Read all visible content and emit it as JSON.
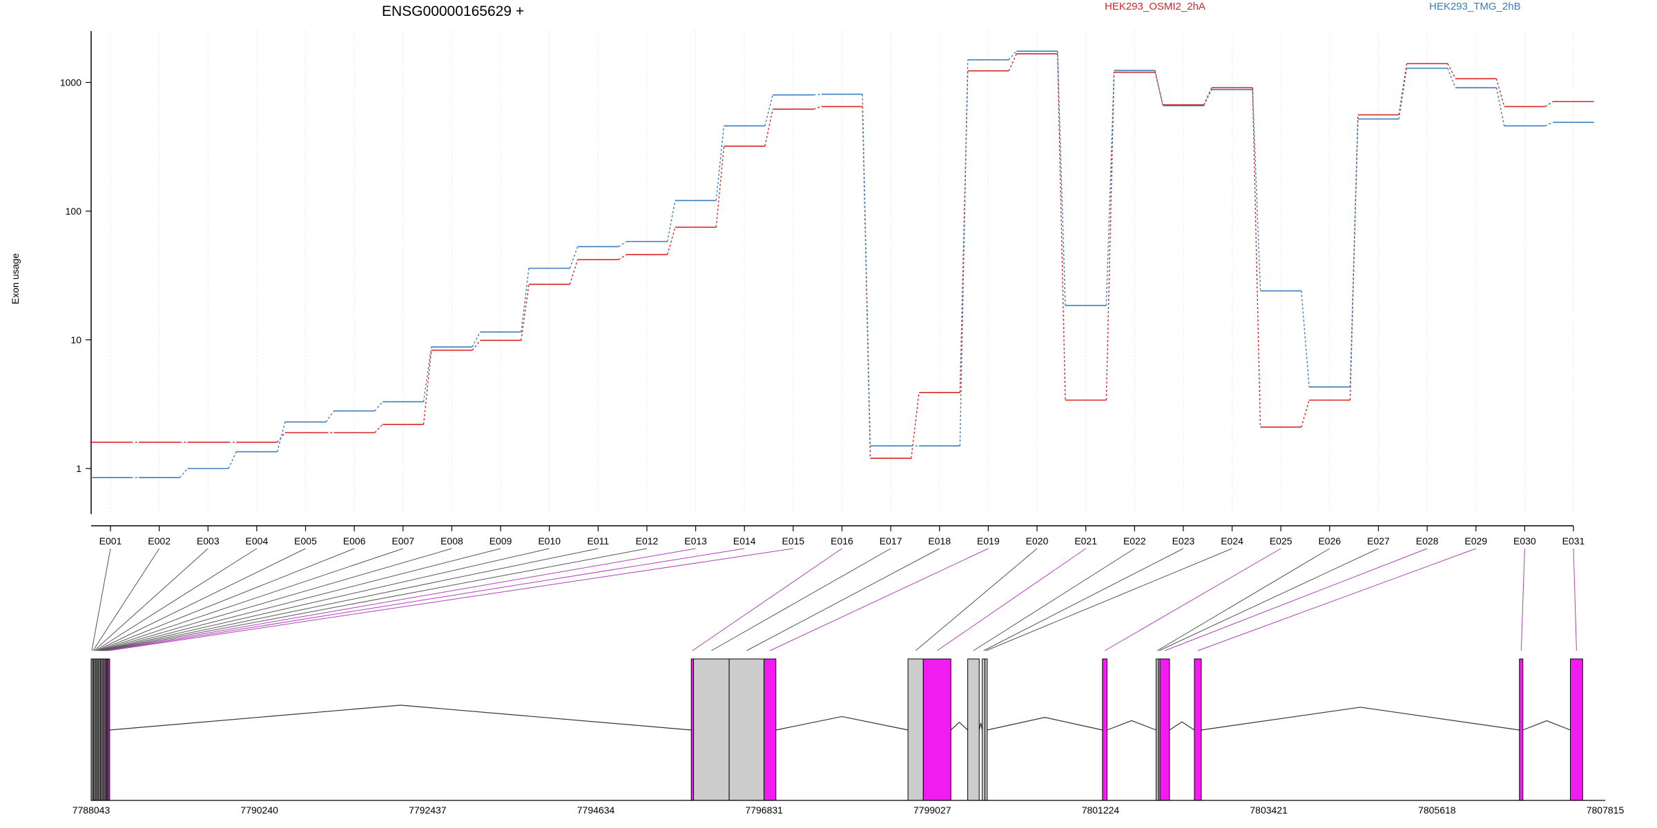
{
  "chart_data": {
    "type": "line",
    "title": "ENSG00000165629 +",
    "ylabel": "Exon usage",
    "yscale": "log",
    "ylim": [
      0.5,
      2500
    ],
    "yticks": [
      "1",
      "10",
      "100",
      "1000"
    ],
    "categories": [
      "E001",
      "E002",
      "E003",
      "E004",
      "E005",
      "E006",
      "E007",
      "E008",
      "E009",
      "E010",
      "E011",
      "E012",
      "E013",
      "E014",
      "E015",
      "E016",
      "E017",
      "E018",
      "E019",
      "E020",
      "E021",
      "E022",
      "E023",
      "E024",
      "E025",
      "E026",
      "E027",
      "E028",
      "E029",
      "E030",
      "E031"
    ],
    "series": [
      {
        "name": "HEK293_OSMI2_2hA",
        "color": "#d62728",
        "values": [
          1.6,
          1.6,
          1.6,
          1.6,
          1.9,
          1.9,
          2.2,
          8.3,
          9.9,
          27,
          42,
          46,
          75,
          320,
          620,
          650,
          1.2,
          3.9,
          1230,
          1670,
          3.4,
          1200,
          670,
          910,
          2.1,
          3.4,
          560,
          1400,
          1070,
          650,
          710
        ]
      },
      {
        "name": "HEK293_TMG_2hB",
        "color": "#3a7dbf",
        "values": [
          0.85,
          0.85,
          1.0,
          1.35,
          2.3,
          2.8,
          3.3,
          8.8,
          11.5,
          36,
          53,
          58,
          121,
          460,
          800,
          810,
          1.5,
          1.5,
          1500,
          1750,
          18.5,
          1240,
          660,
          880,
          24,
          4.3,
          520,
          1290,
          910,
          460,
          490
        ]
      }
    ],
    "gene_axis": {
      "tick_labels": [
        "7788043",
        "7790240",
        "7792437",
        "7794634",
        "7796831",
        "7799027",
        "7801224",
        "7803421",
        "7805618",
        "7807815"
      ],
      "range": [
        7788043,
        7807815
      ]
    },
    "exon_track": {
      "colors": {
        "significant": "#f01cf0",
        "normal": "#cccccc",
        "outline": "#000000"
      },
      "exons": [
        {
          "id": "E001",
          "start": 7788043,
          "end": 7788060,
          "highlight": false
        },
        {
          "id": "E002",
          "start": 7788060,
          "end": 7788075,
          "highlight": false
        },
        {
          "id": "E003",
          "start": 7788075,
          "end": 7788090,
          "highlight": false
        },
        {
          "id": "E004",
          "start": 7788090,
          "end": 7788105,
          "highlight": false
        },
        {
          "id": "E005",
          "start": 7788105,
          "end": 7788120,
          "highlight": false
        },
        {
          "id": "E006",
          "start": 7788120,
          "end": 7788135,
          "highlight": false
        },
        {
          "id": "E007",
          "start": 7788135,
          "end": 7788150,
          "highlight": false
        },
        {
          "id": "E008",
          "start": 7788150,
          "end": 7788165,
          "highlight": false
        },
        {
          "id": "E009",
          "start": 7788165,
          "end": 7788180,
          "highlight": false
        },
        {
          "id": "E010",
          "start": 7788180,
          "end": 7788195,
          "highlight": false
        },
        {
          "id": "E011",
          "start": 7788195,
          "end": 7788210,
          "highlight": false
        },
        {
          "id": "E012",
          "start": 7788210,
          "end": 7788225,
          "highlight": false
        },
        {
          "id": "E013",
          "start": 7788225,
          "end": 7788245,
          "highlight": true
        },
        {
          "id": "E014",
          "start": 7788245,
          "end": 7788262,
          "highlight": true
        },
        {
          "id": "E015",
          "start": 7788262,
          "end": 7788285,
          "highlight": true
        },
        {
          "id": "E016",
          "start": 7795880,
          "end": 7795910,
          "highlight": true
        },
        {
          "id": "E017",
          "start": 7795910,
          "end": 7796375,
          "highlight": false
        },
        {
          "id": "E018",
          "start": 7796375,
          "end": 7796830,
          "highlight": false
        },
        {
          "id": "E019",
          "start": 7796830,
          "end": 7796985,
          "highlight": true
        },
        {
          "id": "E020",
          "start": 7798710,
          "end": 7798910,
          "highlight": false
        },
        {
          "id": "E021",
          "start": 7798910,
          "end": 7799270,
          "highlight": true
        },
        {
          "id": "E022",
          "start": 7799490,
          "end": 7799640,
          "highlight": false
        },
        {
          "id": "E023",
          "start": 7799680,
          "end": 7799715,
          "highlight": false
        },
        {
          "id": "E024",
          "start": 7799715,
          "end": 7799745,
          "highlight": false
        },
        {
          "id": "E025",
          "start": 7801250,
          "end": 7801310,
          "highlight": true
        },
        {
          "id": "E026",
          "start": 7801950,
          "end": 7801980,
          "highlight": false
        },
        {
          "id": "E027",
          "start": 7801980,
          "end": 7802000,
          "highlight": false
        },
        {
          "id": "E028",
          "start": 7802000,
          "end": 7802125,
          "highlight": true
        },
        {
          "id": "E029",
          "start": 7802450,
          "end": 7802540,
          "highlight": true
        },
        {
          "id": "E030",
          "start": 7806695,
          "end": 7806740,
          "highlight": true
        },
        {
          "id": "E031",
          "start": 7807360,
          "end": 7807520,
          "highlight": true
        }
      ]
    }
  }
}
